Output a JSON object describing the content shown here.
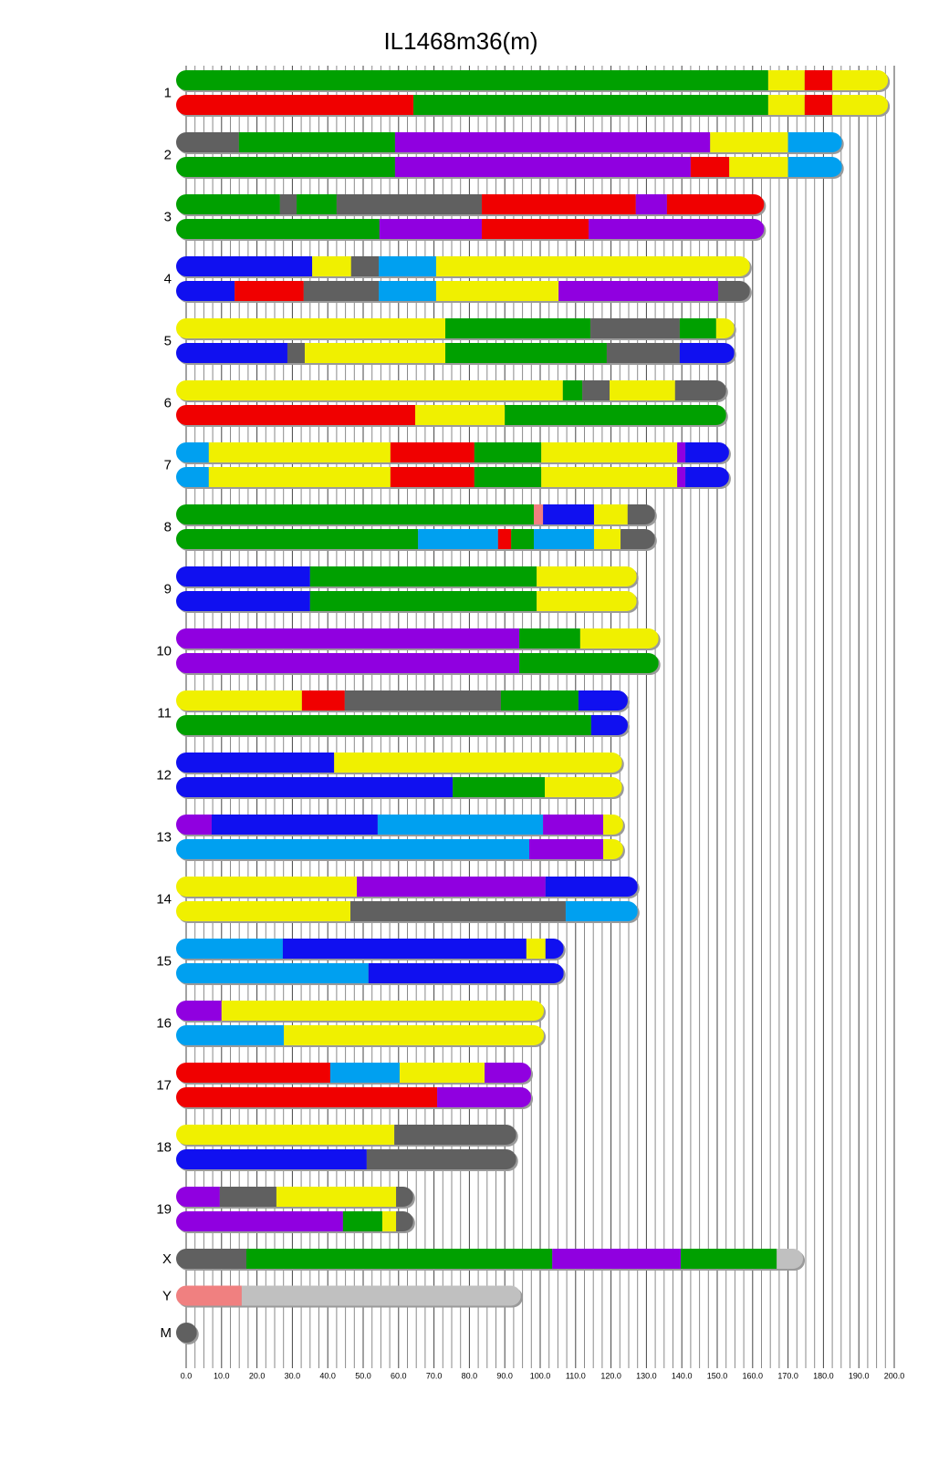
{
  "chart_data": {
    "type": "chromosome",
    "title": "IL1468m36(m)",
    "xlim": [
      0,
      200
    ],
    "grid": true,
    "xticks": [
      {
        "value": 0,
        "label": "0.0"
      },
      {
        "value": 10,
        "label": "10.0"
      },
      {
        "value": 20,
        "label": "20.0"
      },
      {
        "value": 30,
        "label": "30.0"
      },
      {
        "value": 40,
        "label": "40.0"
      },
      {
        "value": 50,
        "label": "50.0"
      },
      {
        "value": 60,
        "label": "60.0"
      },
      {
        "value": 70,
        "label": "70.0"
      },
      {
        "value": 80,
        "label": "80.0"
      },
      {
        "value": 90,
        "label": "90.0"
      },
      {
        "value": 100,
        "label": "100.0"
      },
      {
        "value": 110,
        "label": "110.0"
      },
      {
        "value": 120,
        "label": "120.0"
      },
      {
        "value": 130,
        "label": "130.0"
      },
      {
        "value": 140,
        "label": "140.0"
      },
      {
        "value": 150,
        "label": "150.0"
      },
      {
        "value": 160,
        "label": "160.0"
      },
      {
        "value": 170,
        "label": "170.0"
      },
      {
        "value": 180,
        "label": "180.0"
      },
      {
        "value": 190,
        "label": "190.0"
      },
      {
        "value": 200,
        "label": "200.0"
      }
    ],
    "xminorticks": [
      2.5,
      5,
      7.5,
      12.5,
      15,
      17.5,
      22.5,
      25,
      27.5,
      32.5,
      35,
      37.5,
      42.5,
      45,
      47.5,
      52.5,
      55,
      57.5,
      62.5,
      65,
      67.5,
      72.5,
      75,
      77.5,
      82.5,
      85,
      87.5,
      92.5,
      95,
      97.5,
      102.5,
      105,
      107.5,
      112.5,
      115,
      117.5,
      122.5,
      125,
      127.5,
      132.5,
      135,
      137.5,
      142.5,
      145,
      147.5,
      152.5,
      155,
      157.5,
      162.5,
      165,
      167.5,
      172.5,
      175,
      177.5,
      182.5,
      185,
      187.5,
      192.5,
      195,
      197.5
    ],
    "chromosomes": [
      {
        "name": "1",
        "haplotypes": [
          {
            "breaks": [
              0,
              164.4,
              174.7,
              182.5,
              195.4
            ],
            "colors": [
              "#00a000",
              "#f0f000",
              "#f00000",
              "#f0f000"
            ]
          },
          {
            "breaks": [
              0,
              64.2,
              164.4,
              174.7,
              182.5,
              195.4
            ],
            "colors": [
              "#f00000",
              "#00a000",
              "#f0f000",
              "#f00000",
              "#f0f000"
            ]
          }
        ]
      },
      {
        "name": "2",
        "haplotypes": [
          {
            "breaks": [
              0,
              14.9,
              59,
              148,
              170,
              182.4
            ],
            "colors": [
              "#606060",
              "#00a000",
              "#9000e0",
              "#f0f000",
              "#00a0f0"
            ]
          },
          {
            "breaks": [
              0,
              59,
              142.5,
              153.4,
              170,
              182.4
            ],
            "colors": [
              "#00a000",
              "#9000e0",
              "#f00000",
              "#f0f000",
              "#00a0f0"
            ]
          }
        ]
      },
      {
        "name": "3",
        "haplotypes": [
          {
            "breaks": [
              0,
              26.5,
              31.2,
              42.5,
              83.5,
              127,
              135.8,
              160.4
            ],
            "colors": [
              "#00a000",
              "#606060",
              "#00a000",
              "#606060",
              "#f00000",
              "#9000e0",
              "#f00000"
            ]
          },
          {
            "breaks": [
              0,
              54.6,
              83.5,
              113.7,
              160.4
            ],
            "colors": [
              "#00a000",
              "#9000e0",
              "#f00000",
              "#9000e0"
            ]
          }
        ]
      },
      {
        "name": "4",
        "haplotypes": [
          {
            "breaks": [
              0,
              35.6,
              46.6,
              54.4,
              70.6,
              156.4
            ],
            "colors": [
              "#1010f0",
              "#f0f000",
              "#606060",
              "#00a0f0",
              "#f0f000"
            ]
          },
          {
            "breaks": [
              0,
              13.7,
              33.2,
              54.4,
              70.6,
              105.2,
              150.3,
              156.4
            ],
            "colors": [
              "#1010f0",
              "#f00000",
              "#606060",
              "#00a0f0",
              "#f0f000",
              "#9000e0",
              "#606060"
            ]
          }
        ]
      },
      {
        "name": "5",
        "haplotypes": [
          {
            "breaks": [
              0,
              73.2,
              114.2,
              139.4,
              149.7,
              152
            ],
            "colors": [
              "#f0f000",
              "#00a000",
              "#606060",
              "#00a000",
              "#f0f000"
            ]
          },
          {
            "breaks": [
              0,
              28.6,
              33.5,
              73.2,
              118.8,
              139.4,
              152
            ],
            "colors": [
              "#1010f0",
              "#606060",
              "#f0f000",
              "#00a000",
              "#606060",
              "#1010f0"
            ]
          }
        ]
      },
      {
        "name": "6",
        "haplotypes": [
          {
            "breaks": [
              0,
              106.4,
              111.9,
              119.6,
              138.1,
              149.7
            ],
            "colors": [
              "#f0f000",
              "#00a000",
              "#606060",
              "#f0f000",
              "#606060"
            ]
          },
          {
            "breaks": [
              0,
              64.7,
              90,
              149.7
            ],
            "colors": [
              "#f00000",
              "#f0f000",
              "#00a000"
            ]
          }
        ]
      },
      {
        "name": "7",
        "haplotypes": [
          {
            "breaks": [
              0,
              6.4,
              57.7,
              81.4,
              100.3,
              138.7,
              141,
              150.5
            ],
            "colors": [
              "#00a0f0",
              "#f0f000",
              "#f00000",
              "#00a000",
              "#f0f000",
              "#9000e0",
              "#1010f0"
            ]
          },
          {
            "breaks": [
              0,
              6.4,
              57.7,
              81.4,
              100.3,
              138.7,
              141,
              150.5
            ],
            "colors": [
              "#00a0f0",
              "#f0f000",
              "#f00000",
              "#00a000",
              "#f0f000",
              "#9000e0",
              "#1010f0"
            ]
          }
        ]
      },
      {
        "name": "8",
        "haplotypes": [
          {
            "breaks": [
              0,
              98.2,
              100.8,
              115.2,
              124.7,
              129.6
            ],
            "colors": [
              "#00a000",
              "#f08080",
              "#1010f0",
              "#f0f000",
              "#606060"
            ]
          },
          {
            "breaks": [
              0,
              65.5,
              88.1,
              91.8,
              98.2,
              115.2,
              122.7,
              129.6
            ],
            "colors": [
              "#00a000",
              "#00a0f0",
              "#f00000",
              "#00a000",
              "#00a0f0",
              "#f0f000",
              "#606060"
            ]
          }
        ]
      },
      {
        "name": "9",
        "haplotypes": [
          {
            "breaks": [
              0,
              35,
              99,
              124.4
            ],
            "colors": [
              "#1010f0",
              "#00a000",
              "#f0f000"
            ]
          },
          {
            "breaks": [
              0,
              35,
              99,
              124.4
            ],
            "colors": [
              "#1010f0",
              "#00a000",
              "#f0f000"
            ]
          }
        ]
      },
      {
        "name": "10",
        "haplotypes": [
          {
            "breaks": [
              0,
              94.1,
              111.3,
              130.6
            ],
            "colors": [
              "#9000e0",
              "#00a000",
              "#f0f000"
            ]
          },
          {
            "breaks": [
              0,
              94.1,
              130.6
            ],
            "colors": [
              "#9000e0",
              "#00a000"
            ]
          }
        ]
      },
      {
        "name": "11",
        "haplotypes": [
          {
            "breaks": [
              0,
              32.7,
              44.8,
              88.9,
              110.8,
              121.9
            ],
            "colors": [
              "#f0f000",
              "#f00000",
              "#606060",
              "#00a000",
              "#1010f0"
            ]
          },
          {
            "breaks": [
              0,
              114.4,
              121.9
            ],
            "colors": [
              "#00a000",
              "#1010f0"
            ]
          }
        ]
      },
      {
        "name": "12",
        "haplotypes": [
          {
            "breaks": [
              0,
              41.8,
              120.3
            ],
            "colors": [
              "#1010f0",
              "#f0f000"
            ]
          },
          {
            "breaks": [
              0,
              75.3,
              101.3,
              120.3
            ],
            "colors": [
              "#1010f0",
              "#00a000",
              "#f0f000"
            ]
          }
        ]
      },
      {
        "name": "13",
        "haplotypes": [
          {
            "breaks": [
              0,
              7.2,
              54.1,
              100.8,
              117.8,
              120.6
            ],
            "colors": [
              "#9000e0",
              "#1010f0",
              "#00a0f0",
              "#9000e0",
              "#f0f000"
            ]
          },
          {
            "breaks": [
              0,
              96.9,
              117.8,
              120.6
            ],
            "colors": [
              "#00a0f0",
              "#9000e0",
              "#f0f000"
            ]
          }
        ]
      },
      {
        "name": "14",
        "haplotypes": [
          {
            "breaks": [
              0,
              48.2,
              101.5,
              124.7
            ],
            "colors": [
              "#f0f000",
              "#9000e0",
              "#1010f0"
            ]
          },
          {
            "breaks": [
              0,
              46.4,
              107.2,
              124.7
            ],
            "colors": [
              "#f0f000",
              "#606060",
              "#00a0f0"
            ]
          }
        ]
      },
      {
        "name": "15",
        "haplotypes": [
          {
            "breaks": [
              0,
              27.3,
              96.1,
              101.5,
              103.8
            ],
            "colors": [
              "#00a0f0",
              "#1010f0",
              "#f0f000",
              "#1010f0"
            ]
          },
          {
            "breaks": [
              0,
              51.5,
              103.8
            ],
            "colors": [
              "#00a0f0",
              "#1010f0"
            ]
          }
        ]
      },
      {
        "name": "16",
        "haplotypes": [
          {
            "breaks": [
              0,
              10,
              98.2
            ],
            "colors": [
              "#9000e0",
              "#f0f000"
            ]
          },
          {
            "breaks": [
              0,
              27.6,
              98.2
            ],
            "colors": [
              "#00a0f0",
              "#f0f000"
            ]
          }
        ]
      },
      {
        "name": "17",
        "haplotypes": [
          {
            "breaks": [
              0,
              40.7,
              60.3,
              84.3,
              94.6
            ],
            "colors": [
              "#f00000",
              "#00a0f0",
              "#f0f000",
              "#9000e0"
            ]
          },
          {
            "breaks": [
              0,
              70.9,
              94.6
            ],
            "colors": [
              "#f00000",
              "#9000e0"
            ]
          }
        ]
      },
      {
        "name": "18",
        "haplotypes": [
          {
            "breaks": [
              0,
              58.8,
              90.4
            ],
            "colors": [
              "#f0f000",
              "#606060"
            ]
          },
          {
            "breaks": [
              0,
              51,
              90.4
            ],
            "colors": [
              "#1010f0",
              "#606060"
            ]
          }
        ]
      },
      {
        "name": "19",
        "haplotypes": [
          {
            "breaks": [
              0,
              9.5,
              25.5,
              59.3,
              61.3
            ],
            "colors": [
              "#9000e0",
              "#606060",
              "#f0f000",
              "#606060"
            ]
          },
          {
            "breaks": [
              0,
              44.3,
              55.4,
              59.3,
              61.3
            ],
            "colors": [
              "#9000e0",
              "#00a000",
              "#f0f000",
              "#606060"
            ]
          }
        ]
      },
      {
        "name": "X",
        "haplotypes": [
          {
            "breaks": [
              0,
              17,
              103.4,
              139.7,
              166.8,
              171.4
            ],
            "colors": [
              "#606060",
              "#00a000",
              "#9000e0",
              "#00a000",
              "#c0c0c0"
            ]
          }
        ]
      },
      {
        "name": "Y",
        "haplotypes": [
          {
            "breaks": [
              0,
              15.7,
              91.7
            ],
            "colors": [
              "#f08080",
              "#c0c0c0"
            ]
          }
        ]
      },
      {
        "name": "M",
        "haplotypes": [
          {
            "breaks": [
              0,
              0.2
            ],
            "colors": [
              "#606060"
            ]
          }
        ]
      }
    ]
  }
}
